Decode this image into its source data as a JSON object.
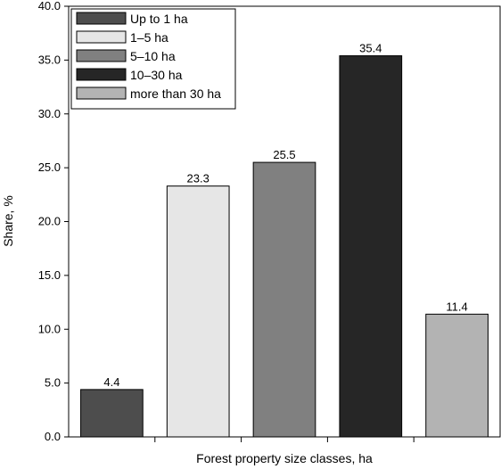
{
  "chart_data": {
    "type": "bar",
    "categories": [
      "Up to 1 ha",
      "1–5 ha",
      "5–10 ha",
      "10–30 ha",
      "more than 30 ha"
    ],
    "values": [
      4.4,
      23.3,
      25.5,
      35.4,
      11.4
    ],
    "value_labels": [
      "4.4",
      "23.3",
      "25.5",
      "35.4",
      "11.4"
    ],
    "colors": [
      "#4d4d4d",
      "#e6e6e6",
      "#808080",
      "#262626",
      "#b3b3b3"
    ],
    "xlabel": "Forest property size classes, ha",
    "ylabel": "Share, %",
    "ylim": [
      0,
      40
    ],
    "yticks": [
      "0.0",
      "5.0",
      "10.0",
      "15.0",
      "20.0",
      "25.0",
      "30.0",
      "35.0",
      "40.0"
    ],
    "grid": false,
    "legend": {
      "position": "top-left",
      "entries": [
        "Up to 1 ha",
        "1–5 ha",
        "5–10 ha",
        "10–30 ha",
        "more than 30 ha"
      ]
    }
  }
}
